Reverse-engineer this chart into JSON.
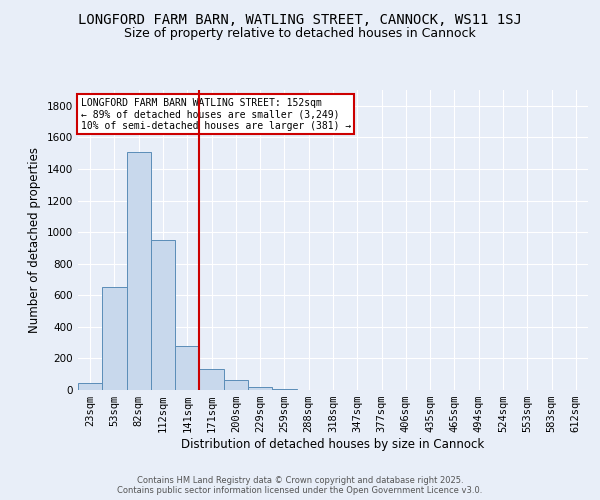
{
  "title": "LONGFORD FARM BARN, WATLING STREET, CANNOCK, WS11 1SJ",
  "subtitle": "Size of property relative to detached houses in Cannock",
  "xlabel": "Distribution of detached houses by size in Cannock",
  "ylabel": "Number of detached properties",
  "categories": [
    "23sqm",
    "53sqm",
    "82sqm",
    "112sqm",
    "141sqm",
    "171sqm",
    "200sqm",
    "229sqm",
    "259sqm",
    "288sqm",
    "318sqm",
    "347sqm",
    "377sqm",
    "406sqm",
    "435sqm",
    "465sqm",
    "494sqm",
    "524sqm",
    "553sqm",
    "583sqm",
    "612sqm"
  ],
  "values": [
    45,
    650,
    1510,
    950,
    280,
    135,
    65,
    20,
    8,
    3,
    2,
    1,
    1,
    1,
    0,
    0,
    0,
    0,
    0,
    0,
    0
  ],
  "bar_color": "#c8d8ec",
  "bar_edge_color": "#5b8db8",
  "vline_x": 4.5,
  "vline_color": "#cc0000",
  "annotation_text": "LONGFORD FARM BARN WATLING STREET: 152sqm\n← 89% of detached houses are smaller (3,249)\n10% of semi-detached houses are larger (381) →",
  "annotation_box_color": "#ffffff",
  "annotation_box_edge": "#cc0000",
  "bg_color": "#e8eef8",
  "grid_color": "#ffffff",
  "ylim": [
    0,
    1900
  ],
  "yticks": [
    0,
    200,
    400,
    600,
    800,
    1000,
    1200,
    1400,
    1600,
    1800
  ],
  "footer": "Contains HM Land Registry data © Crown copyright and database right 2025.\nContains public sector information licensed under the Open Government Licence v3.0.",
  "title_fontsize": 10,
  "subtitle_fontsize": 9,
  "axis_label_fontsize": 8.5,
  "tick_fontsize": 7.5,
  "annotation_fontsize": 7,
  "footer_fontsize": 6
}
